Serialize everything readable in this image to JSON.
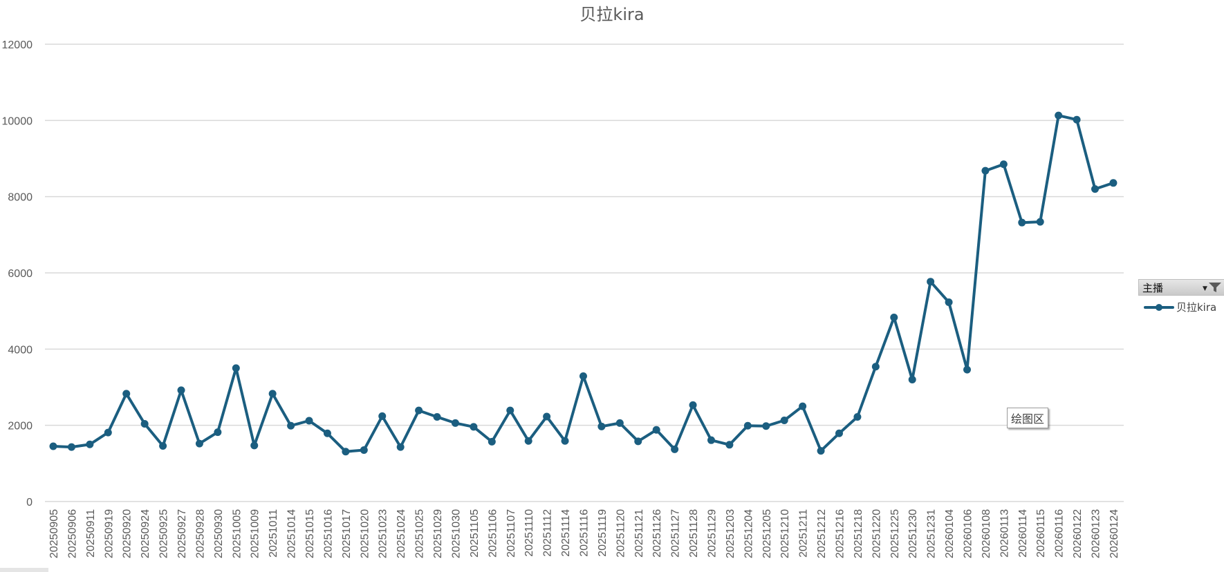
{
  "chart_data": {
    "type": "line",
    "title": "贝拉kira",
    "xlabel": "",
    "ylabel": "",
    "ylim": [
      0,
      12000
    ],
    "yticks": [
      0,
      2000,
      4000,
      6000,
      8000,
      10000,
      12000
    ],
    "grid": true,
    "legend_position": "right",
    "categories": [
      "20250905",
      "20250906",
      "20250911",
      "20250919",
      "20250920",
      "20250924",
      "20250925",
      "20250927",
      "20250928",
      "20250930",
      "20251005",
      "20251009",
      "20251011",
      "20251014",
      "20251015",
      "20251016",
      "20251017",
      "20251020",
      "20251023",
      "20251024",
      "20251025",
      "20251029",
      "20251030",
      "20251105",
      "20251106",
      "20251107",
      "20251110",
      "20251112",
      "20251114",
      "20251116",
      "20251119",
      "20251120",
      "20251121",
      "20251126",
      "20251127",
      "20251128",
      "20251129",
      "20251203",
      "20251204",
      "20251205",
      "20251210",
      "20251211",
      "20251212",
      "20251216",
      "20251218",
      "20251220",
      "20251225",
      "20251230",
      "20251231",
      "20260104",
      "20260106",
      "20260108",
      "20260113",
      "20260114",
      "20260115",
      "20260116",
      "20260122",
      "20260123",
      "20260124"
    ],
    "series": [
      {
        "name": "贝拉kira",
        "color": "#1b5e80",
        "values": [
          1450,
          1430,
          1500,
          1810,
          2830,
          2040,
          1460,
          2920,
          1520,
          1820,
          3500,
          1470,
          2830,
          1990,
          2120,
          1790,
          1310,
          1350,
          2240,
          1430,
          2390,
          2220,
          2060,
          1960,
          1570,
          2390,
          1590,
          2230,
          1590,
          3290,
          1970,
          2060,
          1580,
          1880,
          1370,
          2530,
          1610,
          1490,
          1990,
          1980,
          2130,
          2500,
          1330,
          1790,
          2220,
          3540,
          4830,
          3200,
          5770,
          5230,
          3460,
          8680,
          8850,
          7320,
          7340,
          10130,
          10020,
          8200,
          8360
        ]
      }
    ]
  },
  "legend": {
    "field_label": "主播",
    "dropdown_icon": "dropdown-arrow-icon",
    "filter_icon": "filter-icon",
    "entry_label": "贝拉kira"
  },
  "plot_area_tag": "绘图区",
  "colors": {
    "series": "#1b5e80",
    "grid": "#d9d9d9",
    "text": "#595959"
  }
}
